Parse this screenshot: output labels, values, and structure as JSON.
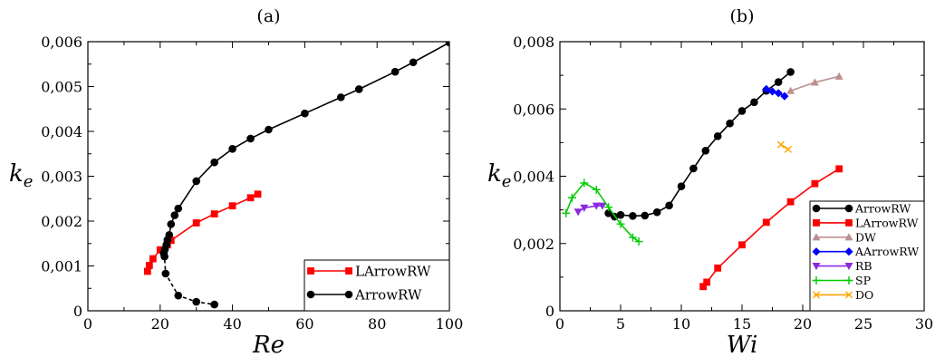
{
  "chart_data": [
    {
      "type": "line",
      "title": "(a)",
      "xlabel": "Re",
      "ylabel_base": "k",
      "ylabel_sub": "e",
      "xlim": [
        0,
        100
      ],
      "ylim": [
        0,
        0.006
      ],
      "xticks": [
        0,
        20,
        40,
        60,
        80,
        100
      ],
      "xtick_labels": [
        "0",
        "20",
        "40",
        "60",
        "80",
        "100"
      ],
      "yticks": [
        0,
        0.001,
        0.002,
        0.003,
        0.004,
        0.005,
        0.006
      ],
      "ytick_labels": [
        "0",
        "0,001",
        "0,002",
        "0,003",
        "0,004",
        "0,005",
        "0,006"
      ],
      "grid": false,
      "legend_position": "bottom-right",
      "series": [
        {
          "name": "LArrowRW",
          "color": "#ff0000",
          "marker": "square",
          "line": "solid",
          "x": [
            16.5,
            17,
            18,
            20,
            22,
            23,
            30,
            35,
            40,
            45,
            47
          ],
          "y": [
            0.00088,
            0.00101,
            0.00116,
            0.00136,
            0.00147,
            0.00157,
            0.00196,
            0.00216,
            0.00234,
            0.00252,
            0.0026
          ]
        },
        {
          "name": "ArrowRW",
          "color": "#000000",
          "marker": "circle",
          "line": "solid",
          "x": [
            21,
            21.3,
            21.7,
            22,
            22.5,
            23,
            24,
            25,
            30,
            35,
            40,
            45,
            50,
            60,
            70,
            75,
            85,
            90,
            100
          ],
          "y": [
            0.00128,
            0.00137,
            0.00147,
            0.00158,
            0.00169,
            0.00193,
            0.00213,
            0.00228,
            0.00289,
            0.00331,
            0.00361,
            0.00384,
            0.00404,
            0.0044,
            0.00476,
            0.00494,
            0.00533,
            0.00554,
            0.00598
          ]
        },
        {
          "name": "",
          "color": "#000000",
          "marker": "circle",
          "line": "dashed",
          "x": [
            21,
            21.2,
            21.5,
            25,
            30,
            35
          ],
          "y": [
            0.00128,
            0.00121,
            0.00083,
            0.00034,
            0.0002,
            0.00014
          ]
        }
      ]
    },
    {
      "type": "line",
      "title": "(b)",
      "xlabel": "Wi",
      "ylabel_base": "k",
      "ylabel_sub": "e",
      "xlim": [
        0,
        30
      ],
      "ylim": [
        0,
        0.008
      ],
      "xticks": [
        0,
        5,
        10,
        15,
        20,
        25,
        30
      ],
      "xtick_labels": [
        "0",
        "5",
        "10",
        "15",
        "20",
        "25",
        "30"
      ],
      "yticks": [
        0,
        0.002,
        0.004,
        0.006,
        0.008
      ],
      "ytick_labels": [
        "0",
        "0,002",
        "0,004",
        "0,006",
        "0,008"
      ],
      "grid": false,
      "legend_position": "bottom-right",
      "series": [
        {
          "name": "ArrowRW",
          "color": "#000000",
          "marker": "circle",
          "line": "solid",
          "x": [
            4,
            4.5,
            5,
            6,
            7,
            8,
            9,
            10,
            11,
            12,
            13,
            14,
            15,
            16,
            17,
            18,
            19
          ],
          "y": [
            0.0029,
            0.0028,
            0.00285,
            0.00282,
            0.00283,
            0.00293,
            0.00313,
            0.0037,
            0.00423,
            0.00476,
            0.00519,
            0.00557,
            0.00594,
            0.0062,
            0.00654,
            0.0068,
            0.0071
          ]
        },
        {
          "name": "LArrowRW",
          "color": "#ff0000",
          "marker": "square",
          "line": "solid",
          "x": [
            11.8,
            12.1,
            13,
            15,
            17,
            19,
            21,
            23
          ],
          "y": [
            0.00072,
            0.00085,
            0.00127,
            0.00196,
            0.00263,
            0.00324,
            0.00378,
            0.00422
          ]
        },
        {
          "name": "DW",
          "color": "#bc8f8f",
          "marker": "triangle-up",
          "line": "solid",
          "x": [
            19,
            21,
            23
          ],
          "y": [
            0.00654,
            0.00679,
            0.00697
          ]
        },
        {
          "name": "AArrowRW",
          "color": "#0000ff",
          "marker": "diamond",
          "line": "solid",
          "x": [
            17,
            17.5,
            18,
            18.5
          ],
          "y": [
            0.00659,
            0.00652,
            0.00647,
            0.00638
          ]
        },
        {
          "name": "RB",
          "color": "#8a2be2",
          "marker": "triangle-down",
          "line": "solid",
          "x": [
            1.5,
            2,
            3,
            3.5
          ],
          "y": [
            0.00294,
            0.00306,
            0.00312,
            0.00312
          ]
        },
        {
          "name": "SP",
          "color": "#00cc00",
          "marker": "plus",
          "line": "solid",
          "x": [
            0.5,
            1,
            2,
            3,
            4,
            5,
            6,
            6.5
          ],
          "y": [
            0.0029,
            0.00336,
            0.0038,
            0.0036,
            0.00308,
            0.00258,
            0.00218,
            0.00206
          ]
        },
        {
          "name": "DO",
          "color": "#ffa500",
          "marker": "cross",
          "line": "solid",
          "x": [
            18.2,
            18.8
          ],
          "y": [
            0.00494,
            0.0048
          ]
        }
      ]
    }
  ]
}
